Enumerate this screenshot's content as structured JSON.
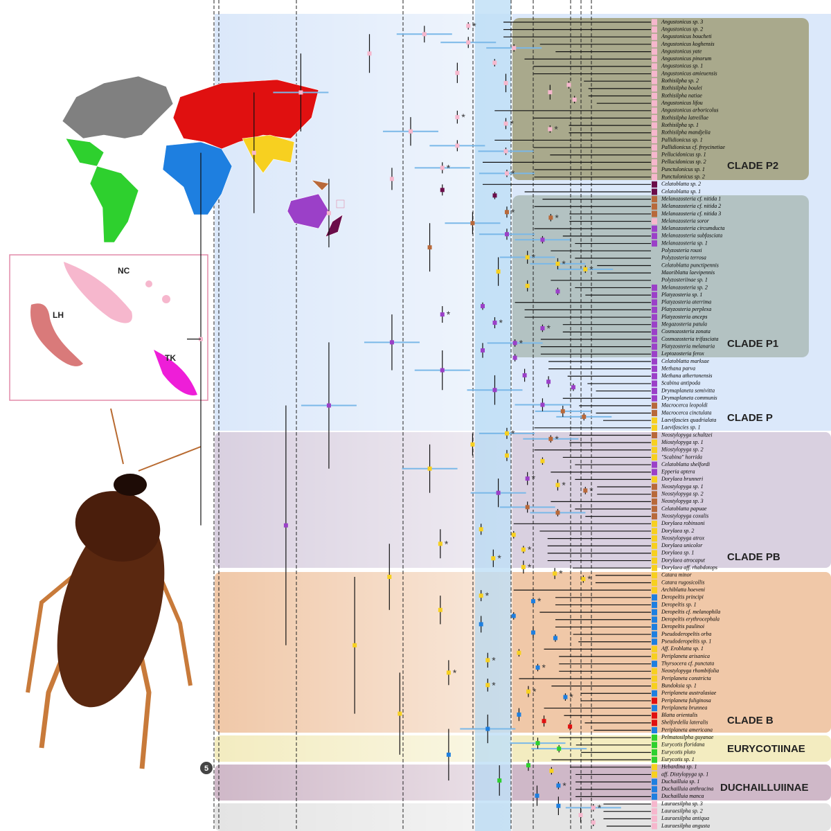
{
  "figure": {
    "clades": [
      {
        "label": "CLADE P2",
        "first": 0,
        "last": 21
      },
      {
        "label": "CLADE P1",
        "first": 24,
        "last": 45
      },
      {
        "label": "CLADE P",
        "first": 0,
        "last": 55
      },
      {
        "label": "CLADE PB",
        "first": 56,
        "last": 74
      },
      {
        "label": "CLADE B",
        "first": 75,
        "last": 96
      },
      {
        "label": "EURYCOTIINAE",
        "first": 97,
        "last": 100
      },
      {
        "label": "DUCHAILLUIINAE",
        "first": 101,
        "last": 105
      }
    ],
    "map_labels": [
      "NC",
      "LH",
      "TK"
    ],
    "node_label": "5",
    "asterisk": "*",
    "taxa": [
      {
        "name": "Angustonicus sp. 3",
        "color": "#f6b7cd"
      },
      {
        "name": "Angustonicus sp. 2",
        "color": "#f6b7cd"
      },
      {
        "name": "Angustonicus boucheti",
        "color": "#f6b7cd"
      },
      {
        "name": "Angustonicus koghensis",
        "color": "#f6b7cd"
      },
      {
        "name": "Angustonicus yate",
        "color": "#f6b7cd"
      },
      {
        "name": "Angustonicus pinorum",
        "color": "#f6b7cd"
      },
      {
        "name": "Angustonicus sp. 1",
        "color": "#f6b7cd"
      },
      {
        "name": "Angustonicus amieuensis",
        "color": "#f6b7cd"
      },
      {
        "name": "Rothisilpha sp. 2",
        "color": "#f6b7cd"
      },
      {
        "name": "Rothisilpha boulei",
        "color": "#f6b7cd"
      },
      {
        "name": "Rothisilpha natiae",
        "color": "#f6b7cd"
      },
      {
        "name": "Angustonicus lifou",
        "color": "#f6b7cd"
      },
      {
        "name": "Angustonicus arboricolus",
        "color": "#f6b7cd"
      },
      {
        "name": "Rothisilpha latreillae",
        "color": "#f6b7cd"
      },
      {
        "name": "Rothisilpha sp. 1",
        "color": "#f6b7cd"
      },
      {
        "name": "Rothisilpha mandjelia",
        "color": "#f6b7cd"
      },
      {
        "name": "Pallidionicus sp. 1",
        "color": "#f6b7cd"
      },
      {
        "name": "Pallidionicus cf. freycinetiae",
        "color": "#f6b7cd"
      },
      {
        "name": "Pellucidonicus sp. 1",
        "color": "#f6b7cd"
      },
      {
        "name": "Pellucidonicus sp. 2",
        "color": "#f6b7cd"
      },
      {
        "name": "Punctulonicus sp. 1",
        "color": "#f6b7cd"
      },
      {
        "name": "Punctulonicus sp. 2",
        "color": "#f6b7cd"
      },
      {
        "name": "Celatoblatta sp. 2",
        "color": "#6b0d4a"
      },
      {
        "name": "Celatoblatta sp. 1",
        "color": "#6b0d4a"
      },
      {
        "name": "Melanozosteria cf. nitida 1",
        "color": "#b8693a"
      },
      {
        "name": "Melanozosteria cf. nitida 2",
        "color": "#b8693a"
      },
      {
        "name": "Melanozosteria cf. nitida 3",
        "color": "#b8693a"
      },
      {
        "name": "Melanozosteria soror",
        "color": "#f6b7cd"
      },
      {
        "name": "Melanozosteria circumducta",
        "color": "#9b40c8"
      },
      {
        "name": "Melanozosteria subfasciata",
        "color": "#9b40c8"
      },
      {
        "name": "Melanozosteria sp. 1",
        "color": "#9b40c8"
      },
      {
        "name": "Polyzosteria rouxi"
      },
      {
        "name": "Polyzosteria terrosa"
      },
      {
        "name": "Celatoblatta punctipennis"
      },
      {
        "name": "Maoriblatta laevipennis"
      },
      {
        "name": "Polyzosteriinae sp. 1"
      },
      {
        "name": "Melanozosteria sp. 2",
        "color": "#9b40c8"
      },
      {
        "name": "Platyzosteria sp. 1",
        "color": "#9b40c8"
      },
      {
        "name": "Platyzosteria aterrima",
        "color": "#9b40c8"
      },
      {
        "name": "Platyzosteria perplexa",
        "color": "#9b40c8"
      },
      {
        "name": "Platyzosteria anceps",
        "color": "#9b40c8"
      },
      {
        "name": "Megazosteria patula",
        "color": "#9b40c8"
      },
      {
        "name": "Cosmozosteria zonata",
        "color": "#9b40c8"
      },
      {
        "name": "Cosmozosteria trifasciata",
        "color": "#9b40c8"
      },
      {
        "name": "Platyzosteria melanaria",
        "color": "#9b40c8"
      },
      {
        "name": "Leptozosteria ferox",
        "color": "#9b40c8"
      },
      {
        "name": "Celatoblatta marksae",
        "color": "#9b40c8"
      },
      {
        "name": "Methana parva",
        "color": "#9b40c8"
      },
      {
        "name": "Methana athertonensis",
        "color": "#9b40c8"
      },
      {
        "name": "Scabina antipoda",
        "color": "#9b40c8"
      },
      {
        "name": "Drymaplaneta semivitta",
        "color": "#9b40c8"
      },
      {
        "name": "Drymaplaneta communis",
        "color": "#9b40c8"
      },
      {
        "name": "Macrocerca leopoldi",
        "color": "#b8693a"
      },
      {
        "name": "Macrocerca cinctulata",
        "color": "#b8693a"
      },
      {
        "name": "Laevifascies quadrialata",
        "color": "#f7d020"
      },
      {
        "name": "Laevifascies sp. 1",
        "color": "#f7d020"
      },
      {
        "name": "Neostylopyga schultzei",
        "color": "#b8693a"
      },
      {
        "name": "Miostylopyga sp. 1",
        "color": "#f7d020"
      },
      {
        "name": "Miostylopyga sp. 2",
        "color": "#f7d020"
      },
      {
        "name": "\"Scabina\" horrida",
        "color": "#f7d020"
      },
      {
        "name": "Celatoblatta shelfordi",
        "color": "#9b40c8"
      },
      {
        "name": "Epperia aptera",
        "color": "#9b40c8"
      },
      {
        "name": "Dorylaea brunneri",
        "color": "#f7d020"
      },
      {
        "name": "Neostylopyga sp. 1",
        "color": "#b8693a"
      },
      {
        "name": "Neostylopyga sp. 2",
        "color": "#b8693a"
      },
      {
        "name": "Neostylopyga sp. 3",
        "color": "#b8693a"
      },
      {
        "name": "Celatoblatta papuae",
        "color": "#b8693a"
      },
      {
        "name": "Neostylopyga coxalis",
        "color": "#b8693a"
      },
      {
        "name": "Dorylaea robinsoni",
        "color": "#f7d020"
      },
      {
        "name": "Dorylaea sp. 2",
        "color": "#f7d020"
      },
      {
        "name": "Neostylopyga atrox",
        "color": "#f7d020"
      },
      {
        "name": "Dorylaea unicolor",
        "color": "#f7d020"
      },
      {
        "name": "Dorylaea sp. 1",
        "color": "#f7d020"
      },
      {
        "name": "Dorylaea atrocaput",
        "color": "#f7d020"
      },
      {
        "name": "Dorylaea aff. rhabdotops",
        "color": "#f7d020"
      },
      {
        "name": "Catara minor",
        "color": "#f7d020"
      },
      {
        "name": "Catara rugosicollis",
        "color": "#f7d020"
      },
      {
        "name": "Archiblatta hoeveni",
        "color": "#f7d020"
      },
      {
        "name": "Deropeltis principi",
        "color": "#1e7fe0"
      },
      {
        "name": "Deropeltis sp. 1",
        "color": "#1e7fe0"
      },
      {
        "name": "Deropeltis cf. melanophila",
        "color": "#1e7fe0"
      },
      {
        "name": "Deropeltis erythrocephala",
        "color": "#1e7fe0"
      },
      {
        "name": "Deropeltis paulinoi",
        "color": "#1e7fe0"
      },
      {
        "name": "Pseudoderopeltis orba",
        "color": "#1e7fe0"
      },
      {
        "name": "Pseudoderopeltis sp. 1",
        "color": "#1e7fe0"
      },
      {
        "name": "Aff. Eroblatta sp. 1",
        "color": "#f7d020"
      },
      {
        "name": "Periplaneta arisanica",
        "color": "#f7d020"
      },
      {
        "name": "Thyrsocera cf. punctata",
        "color": "#1e7fe0"
      },
      {
        "name": "Neostylopyga rhombifolia",
        "color": "#f7d020"
      },
      {
        "name": "Periplaneta constricta",
        "color": "#f7d020"
      },
      {
        "name": "Bundoksia sp. 1",
        "color": "#f7d020"
      },
      {
        "name": "Periplaneta australasiae",
        "color": "#1e7fe0"
      },
      {
        "name": "Periplaneta fuliginosa",
        "color": "#e01010"
      },
      {
        "name": "Periplaneta brunnea",
        "color": "#1e7fe0"
      },
      {
        "name": "Blatta orientalis",
        "color": "#e01010"
      },
      {
        "name": "Shelfordella lateralis",
        "color": "#e01010"
      },
      {
        "name": "Periplaneta americana",
        "color": "#1e7fe0"
      },
      {
        "name": "Pelmatosilpha guyanae",
        "color": "#2ed02e"
      },
      {
        "name": "Eurycotis floridana",
        "color": "#2ed02e"
      },
      {
        "name": "Eurycotis pluto",
        "color": "#2ed02e"
      },
      {
        "name": "Eurycotis sp. 1",
        "color": "#2ed02e"
      },
      {
        "name": "Hebardina sp. 1",
        "color": "#f7d020"
      },
      {
        "name": "aff. Distylopyga sp. 1",
        "color": "#f7d020"
      },
      {
        "name": "Duchailluia sp. 1",
        "color": "#1e7fe0"
      },
      {
        "name": "Duchailluia anthracina",
        "color": "#1e7fe0"
      },
      {
        "name": "Duchailluia manca",
        "color": "#1e7fe0"
      },
      {
        "name": "Lauraesilpha sp. 3",
        "color": "#f6b7cd"
      },
      {
        "name": "Lauraesilpha sp. 2",
        "color": "#f6b7cd"
      },
      {
        "name": "Lauraesilpha antiqua",
        "color": "#f6b7cd"
      },
      {
        "name": "Lauraesilpha angusta",
        "color": "#f6b7cd"
      }
    ]
  }
}
